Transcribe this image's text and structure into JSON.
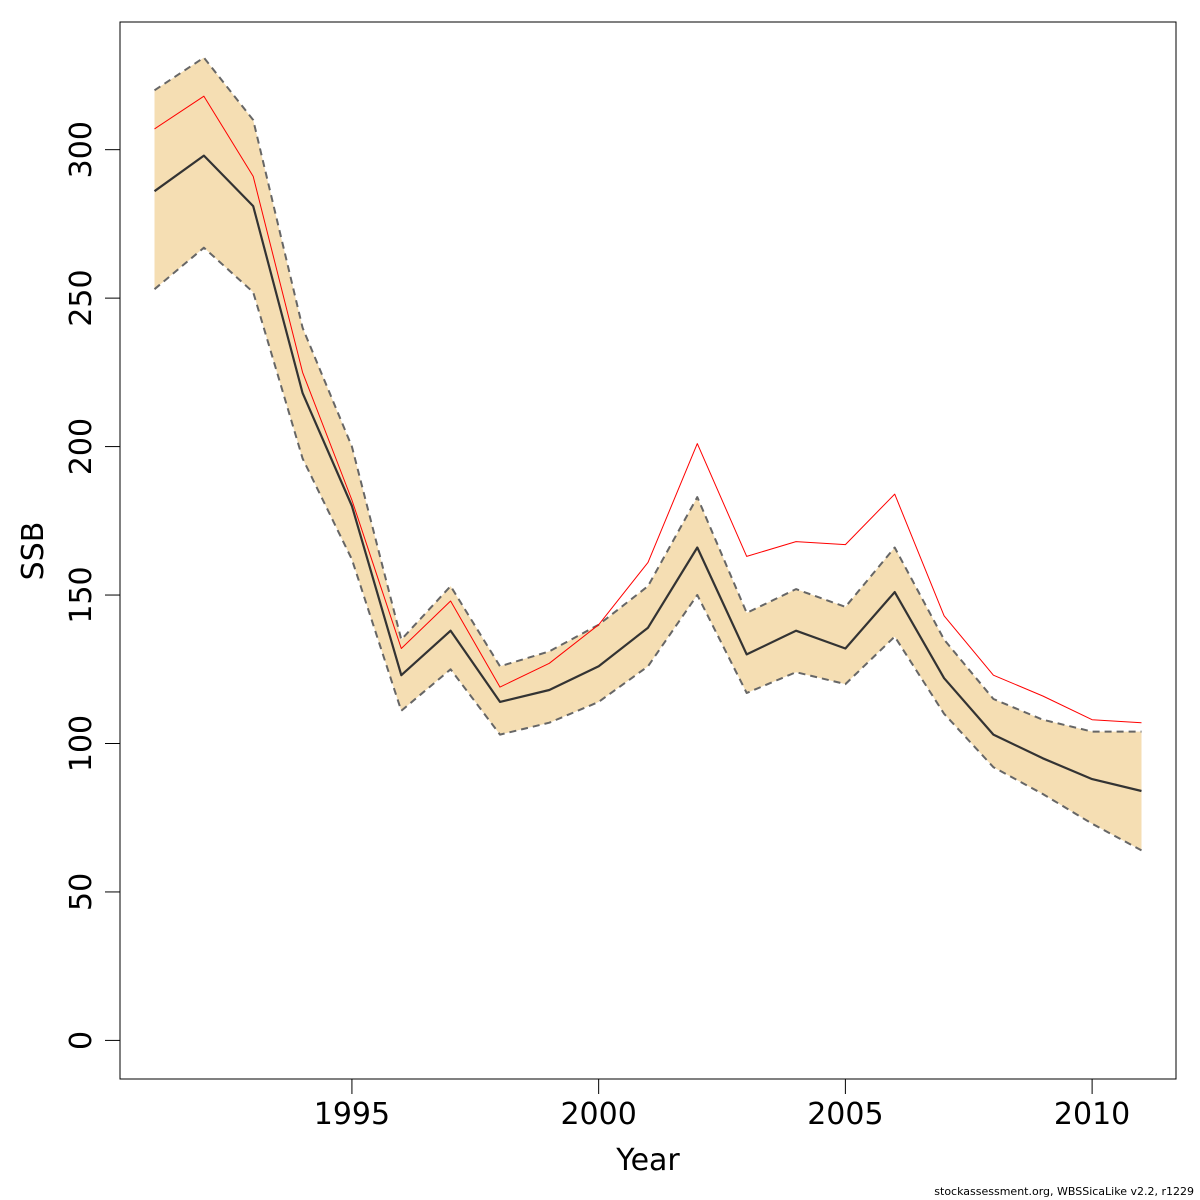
{
  "chart_data": {
    "type": "line",
    "xlabel": "Year",
    "ylabel": "SSB",
    "xlim": [
      1990.3,
      2011.7
    ],
    "ylim": [
      -13,
      343
    ],
    "x_ticks": [
      1995,
      2000,
      2005,
      2010
    ],
    "y_ticks": [
      0,
      50,
      100,
      150,
      200,
      250,
      300
    ],
    "x": [
      1991,
      1992,
      1993,
      1994,
      1995,
      1996,
      1997,
      1998,
      1999,
      2000,
      2001,
      2002,
      2003,
      2004,
      2005,
      2006,
      2007,
      2008,
      2009,
      2010,
      2011
    ],
    "series": [
      {
        "role": "estimate",
        "color": "#333333",
        "values": [
          286,
          298,
          281,
          218,
          180,
          123,
          138,
          114,
          118,
          126,
          139,
          166,
          130,
          138,
          132,
          151,
          122,
          103,
          95,
          88,
          84
        ]
      },
      {
        "role": "upper",
        "color": "#666666",
        "values": [
          320,
          331,
          310,
          240,
          200,
          135,
          153,
          126,
          131,
          140,
          153,
          183,
          144,
          152,
          146,
          166,
          135,
          115,
          108,
          104,
          104
        ]
      },
      {
        "role": "lower",
        "color": "#666666",
        "values": [
          253,
          267,
          252,
          196,
          162,
          111,
          125,
          103,
          107,
          114,
          126,
          150,
          117,
          124,
          120,
          136,
          110,
          92,
          83,
          73,
          64
        ]
      },
      {
        "role": "comparison",
        "color": "#ff0000",
        "values": [
          307,
          318,
          291,
          225,
          182,
          132,
          148,
          119,
          127,
          140,
          161,
          201,
          163,
          168,
          167,
          184,
          143,
          123,
          116,
          108,
          107
        ]
      }
    ],
    "band_color": "#f5deb3",
    "grid": false,
    "legend": "none"
  },
  "footer_text": "stockassessment.org, WBSSicaLike  v2.2, r1229"
}
